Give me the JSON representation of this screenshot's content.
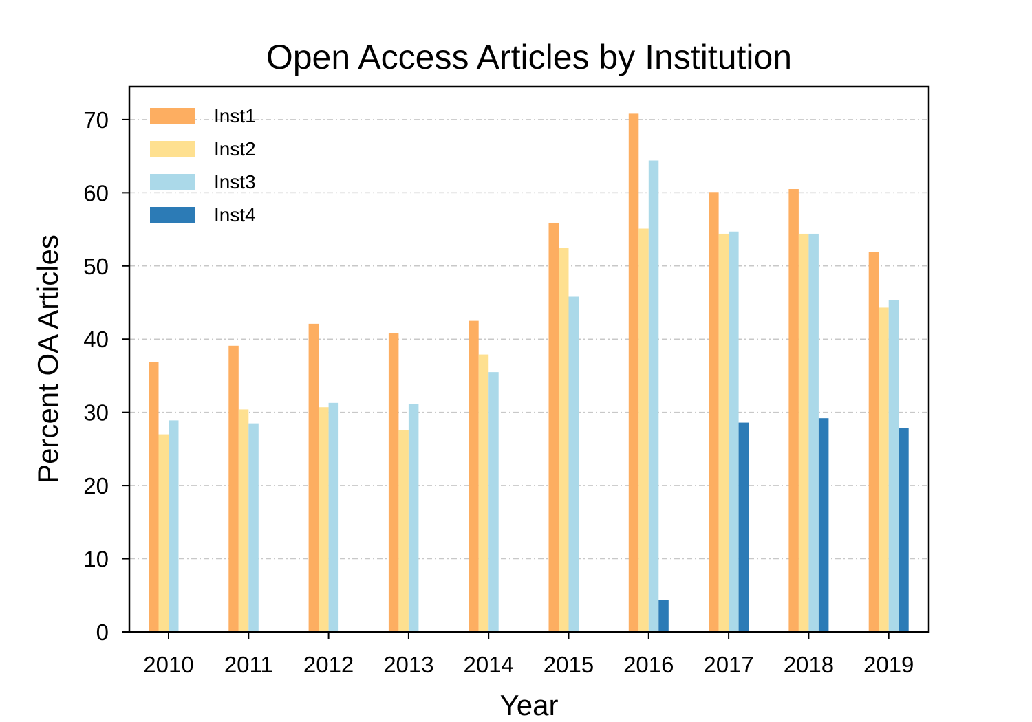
{
  "chart_data": {
    "type": "bar",
    "title": "Open Access Articles by Institution",
    "xlabel": "Year",
    "ylabel": "Percent OA Articles",
    "categories": [
      "2010",
      "2011",
      "2012",
      "2013",
      "2014",
      "2015",
      "2016",
      "2017",
      "2018",
      "2019"
    ],
    "ylim": [
      0,
      74.5
    ],
    "yticks": [
      0,
      10,
      20,
      30,
      40,
      50,
      60,
      70
    ],
    "grid": "horizontal, dash-dot",
    "legend_position": "top-left",
    "series": [
      {
        "name": "Inst1",
        "color": "#fdae61",
        "values": [
          36.9,
          39.1,
          42.1,
          40.8,
          42.5,
          55.9,
          70.8,
          60.1,
          60.5,
          51.9
        ]
      },
      {
        "name": "Inst2",
        "color": "#fee090",
        "values": [
          27.0,
          30.4,
          30.7,
          27.6,
          37.9,
          52.5,
          55.1,
          54.4,
          54.4,
          44.3
        ]
      },
      {
        "name": "Inst3",
        "color": "#abd9e9",
        "values": [
          28.9,
          28.5,
          31.3,
          31.1,
          35.5,
          45.8,
          64.4,
          54.7,
          54.4,
          45.3
        ]
      },
      {
        "name": "Inst4",
        "color": "#2c7bb6",
        "values": [
          0,
          0,
          0,
          0,
          0,
          0,
          4.4,
          28.6,
          29.2,
          27.9
        ]
      }
    ]
  }
}
